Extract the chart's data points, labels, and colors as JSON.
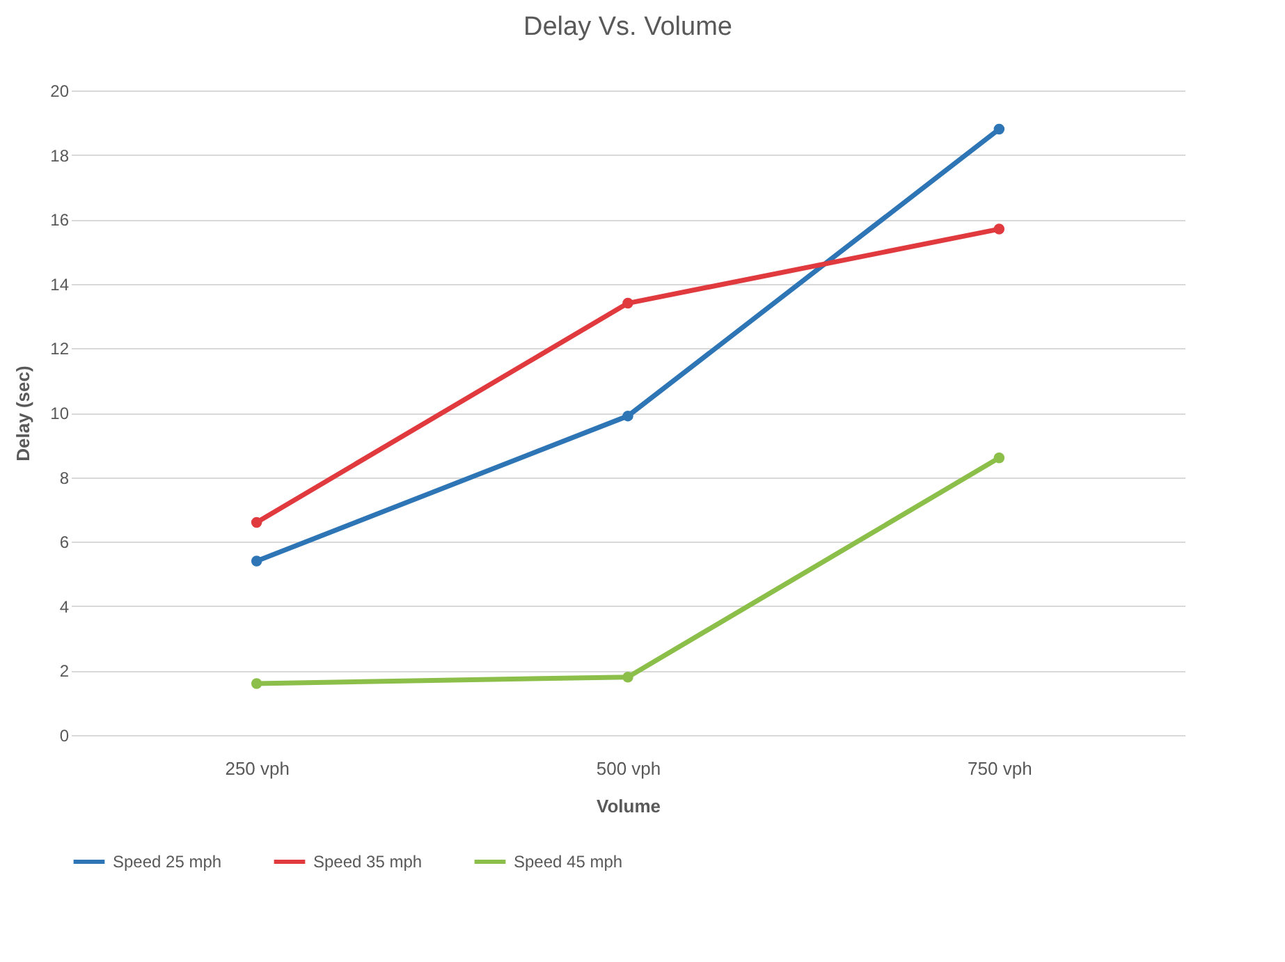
{
  "chart_data": {
    "type": "line",
    "title": "Delay Vs. Volume",
    "xlabel": "Volume",
    "ylabel": "Delay (sec)",
    "categories": [
      "250 vph",
      "500 vph",
      "750 vph"
    ],
    "series": [
      {
        "name": "Speed 25 mph",
        "color": "#2e75b6",
        "values": [
          5.4,
          9.9,
          18.8
        ]
      },
      {
        "name": "Speed 35 mph",
        "color": "#e0393e",
        "values": [
          6.6,
          13.4,
          15.7
        ]
      },
      {
        "name": "Speed 45 mph",
        "color": "#8cbf4a",
        "values": [
          1.6,
          1.8,
          8.6
        ]
      }
    ],
    "ylim": [
      0,
      20
    ],
    "yticks": [
      0,
      2,
      4,
      6,
      8,
      10,
      12,
      14,
      16,
      18,
      20
    ],
    "grid": "y",
    "legend": "bottom",
    "marker": "circle",
    "line_style": "solid"
  }
}
